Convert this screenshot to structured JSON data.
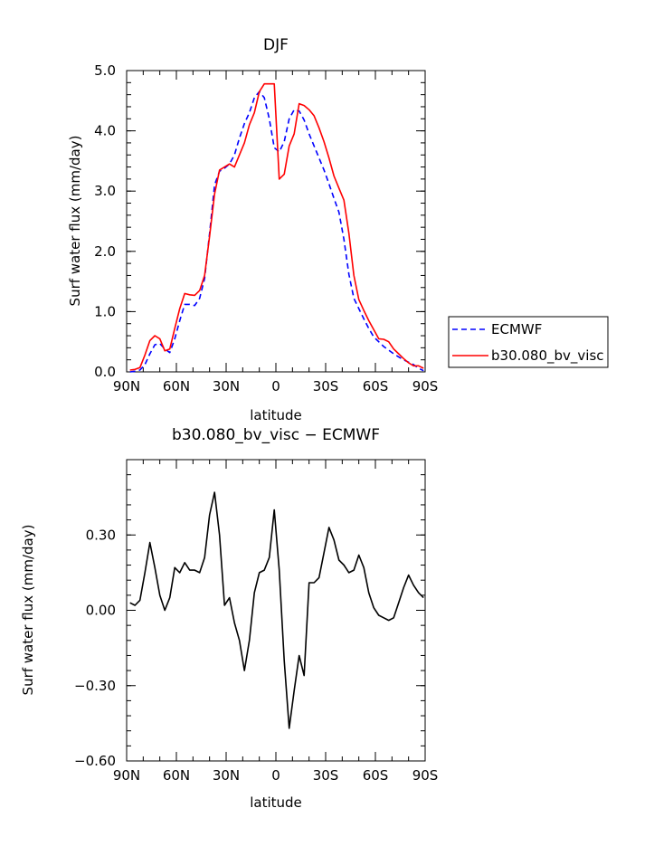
{
  "chart_data": [
    {
      "type": "line",
      "title": "DJF",
      "xlabel": "latitude",
      "ylabel": "Surf water flux (mm/day)",
      "xlim": [
        -90,
        90
      ],
      "ylim": [
        0.0,
        5.0
      ],
      "x_ticks": [
        -90,
        -60,
        -30,
        0,
        30,
        60,
        90
      ],
      "x_tick_labels": [
        "90N",
        "60N",
        "30N",
        "0",
        "30S",
        "60S",
        "90S"
      ],
      "y_ticks": [
        0.0,
        1.0,
        2.0,
        3.0,
        4.0,
        5.0
      ],
      "y_tick_labels": [
        "0.0",
        "1.0",
        "2.0",
        "3.0",
        "4.0",
        "5.0"
      ],
      "legend_position": "right",
      "series": [
        {
          "name": "ECMWF",
          "color": "#0000ff",
          "style": "dashed",
          "x": [
            -88,
            -85,
            -82,
            -79,
            -76,
            -73,
            -70,
            -67,
            -64,
            -61,
            -58,
            -55,
            -52,
            -49,
            -46,
            -43,
            -40,
            -37,
            -34,
            -31,
            -28,
            -25,
            -22,
            -19,
            -16,
            -13,
            -10,
            -7,
            -4,
            -1,
            2,
            5,
            8,
            11,
            14,
            17,
            20,
            23,
            26,
            29,
            32,
            35,
            38,
            41,
            44,
            47,
            50,
            53,
            56,
            59,
            62,
            65,
            68,
            71,
            74,
            77,
            80,
            83,
            86,
            89
          ],
          "values": [
            0.0,
            0.01,
            0.03,
            0.12,
            0.3,
            0.45,
            0.47,
            0.38,
            0.32,
            0.55,
            0.85,
            1.12,
            1.12,
            1.1,
            1.22,
            1.55,
            2.3,
            3.1,
            3.33,
            3.38,
            3.45,
            3.6,
            3.88,
            4.12,
            4.3,
            4.55,
            4.65,
            4.55,
            4.2,
            3.72,
            3.65,
            3.82,
            4.2,
            4.35,
            4.33,
            4.18,
            3.95,
            3.75,
            3.55,
            3.35,
            3.12,
            2.88,
            2.65,
            2.2,
            1.62,
            1.22,
            1.05,
            0.88,
            0.72,
            0.58,
            0.5,
            0.42,
            0.36,
            0.3,
            0.25,
            0.2,
            0.16,
            0.12,
            0.06,
            0.02
          ]
        },
        {
          "name": "b30.080_bv_visc",
          "color": "#ff0000",
          "style": "solid",
          "x": [
            -88,
            -85,
            -82,
            -79,
            -76,
            -73,
            -70,
            -67,
            -64,
            -61,
            -58,
            -55,
            -52,
            -49,
            -46,
            -43,
            -40,
            -37,
            -34,
            -31,
            -28,
            -25,
            -22,
            -19,
            -16,
            -13,
            -10,
            -7,
            -4,
            -1,
            2,
            5,
            8,
            11,
            14,
            17,
            20,
            23,
            26,
            29,
            32,
            35,
            38,
            41,
            44,
            47,
            50,
            53,
            56,
            59,
            62,
            65,
            68,
            71,
            74,
            77,
            80,
            83,
            86,
            89
          ],
          "values": [
            0.03,
            0.04,
            0.07,
            0.28,
            0.52,
            0.6,
            0.55,
            0.35,
            0.38,
            0.72,
            1.05,
            1.3,
            1.28,
            1.27,
            1.35,
            1.6,
            2.25,
            2.95,
            3.35,
            3.4,
            3.45,
            3.4,
            3.6,
            3.8,
            4.1,
            4.3,
            4.65,
            4.78,
            4.78,
            4.78,
            3.2,
            3.28,
            3.75,
            3.95,
            4.45,
            4.42,
            4.35,
            4.25,
            4.05,
            3.82,
            3.55,
            3.25,
            3.05,
            2.85,
            2.3,
            1.6,
            1.2,
            1.02,
            0.85,
            0.7,
            0.55,
            0.54,
            0.5,
            0.38,
            0.3,
            0.22,
            0.15,
            0.1,
            0.1,
            0.06
          ]
        }
      ]
    },
    {
      "type": "line",
      "title": "b30.080_bv_visc − ECMWF",
      "xlabel": "latitude",
      "ylabel": "Surf water flux (mm/day)",
      "xlim": [
        -90,
        90
      ],
      "ylim": [
        -0.6,
        0.6
      ],
      "x_ticks": [
        -90,
        -60,
        -30,
        0,
        30,
        60,
        90
      ],
      "x_tick_labels": [
        "90N",
        "60N",
        "30N",
        "0",
        "30S",
        "60S",
        "90S"
      ],
      "y_ticks": [
        -0.6,
        -0.3,
        0.0,
        0.3
      ],
      "y_tick_labels": [
        "−0.60",
        "−0.30",
        "0.00",
        "0.30"
      ],
      "series": [
        {
          "name": "b30.080_bv_visc − ECMWF",
          "color": "#000000",
          "style": "solid",
          "x": [
            -88,
            -85,
            -82,
            -79,
            -76,
            -73,
            -70,
            -67,
            -64,
            -61,
            -58,
            -55,
            -52,
            -49,
            -46,
            -43,
            -40,
            -37,
            -34,
            -31,
            -28,
            -25,
            -22,
            -19,
            -16,
            -13,
            -10,
            -7,
            -4,
            -1,
            2,
            5,
            8,
            11,
            14,
            17,
            20,
            23,
            26,
            29,
            32,
            35,
            38,
            41,
            44,
            47,
            50,
            53,
            56,
            59,
            62,
            65,
            68,
            71,
            74,
            77,
            80,
            83,
            86,
            89
          ],
          "values": [
            0.03,
            0.02,
            0.04,
            0.15,
            0.27,
            0.17,
            0.06,
            0.0,
            0.05,
            0.17,
            0.15,
            0.19,
            0.16,
            0.16,
            0.15,
            0.21,
            0.38,
            0.47,
            0.3,
            0.02,
            0.05,
            -0.05,
            -0.12,
            -0.24,
            -0.12,
            0.07,
            0.15,
            0.16,
            0.21,
            0.4,
            0.16,
            -0.2,
            -0.47,
            -0.32,
            -0.18,
            -0.26,
            0.11,
            0.11,
            0.13,
            0.23,
            0.33,
            0.28,
            0.2,
            0.18,
            0.15,
            0.16,
            0.22,
            0.17,
            0.07,
            0.01,
            -0.02,
            -0.03,
            -0.04,
            -0.03,
            0.03,
            0.09,
            0.14,
            0.1,
            0.07,
            0.05
          ]
        }
      ]
    }
  ]
}
